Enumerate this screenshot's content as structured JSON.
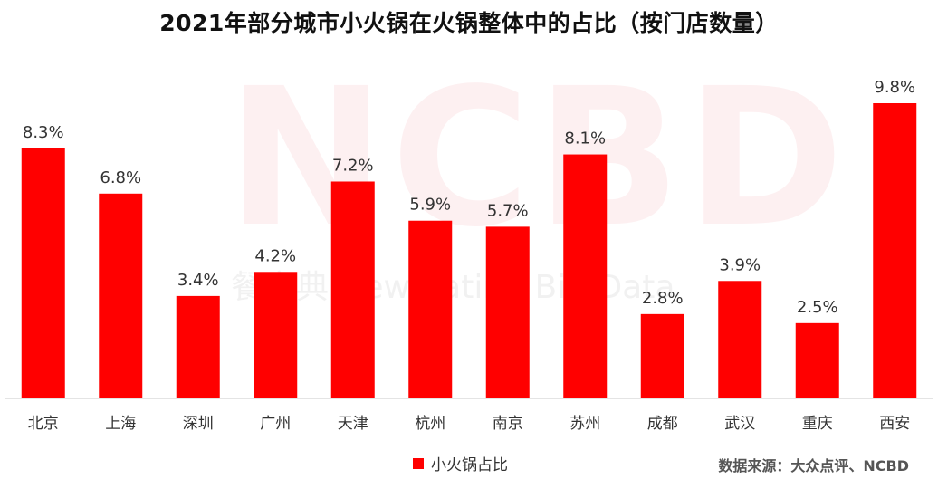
{
  "title": "2021年部分城市小火锅在火锅整体中的占比（按门店数量）",
  "watermark": {
    "logo": "NCBD",
    "tagline": "餐宝典 New Eating Big Data"
  },
  "chart_data": {
    "type": "bar",
    "categories": [
      "北京",
      "上海",
      "深圳",
      "广州",
      "天津",
      "杭州",
      "南京",
      "苏州",
      "成都",
      "武汉",
      "重庆",
      "西安"
    ],
    "series": [
      {
        "name": "小火锅占比",
        "values": [
          8.3,
          6.8,
          3.4,
          4.2,
          7.2,
          5.9,
          5.7,
          8.1,
          2.8,
          3.9,
          2.5,
          9.8
        ]
      }
    ],
    "data_labels": [
      "8.3%",
      "6.8%",
      "3.4%",
      "4.2%",
      "7.2%",
      "5.9%",
      "5.7%",
      "8.1%",
      "2.8%",
      "3.9%",
      "2.5%",
      "9.8%"
    ],
    "ylim": [
      0,
      9.8
    ],
    "grid": false,
    "legend_position": "bottom",
    "bar_color": "#ff0000"
  },
  "source_note": "数据来源：大众点评、NCBD"
}
